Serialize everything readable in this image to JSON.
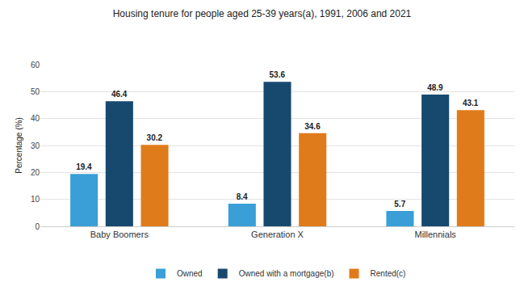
{
  "chart_data": {
    "type": "bar",
    "title": "Housing tenure for people aged 25-39 years(a), 1991, 2006 and 2021",
    "y_label": "Percentage (%)",
    "categories": [
      "Baby Boomers",
      "Generation X",
      "Millennials"
    ],
    "series": [
      {
        "name": "Owned",
        "color": "#3a9fd6",
        "values": [
          19.4,
          8.4,
          5.7
        ]
      },
      {
        "name": "Owned with a mortgage(b)",
        "color": "#17496f",
        "values": [
          46.4,
          53.6,
          48.9
        ]
      },
      {
        "name": "Rented(c)",
        "color": "#e07b1b",
        "values": [
          30.2,
          34.6,
          43.1
        ]
      }
    ],
    "ylim": [
      0,
      60
    ],
    "yticks": [
      0,
      10,
      20,
      30,
      40,
      50,
      60
    ],
    "grid": true,
    "legend": "bottom",
    "data_labels": true
  }
}
